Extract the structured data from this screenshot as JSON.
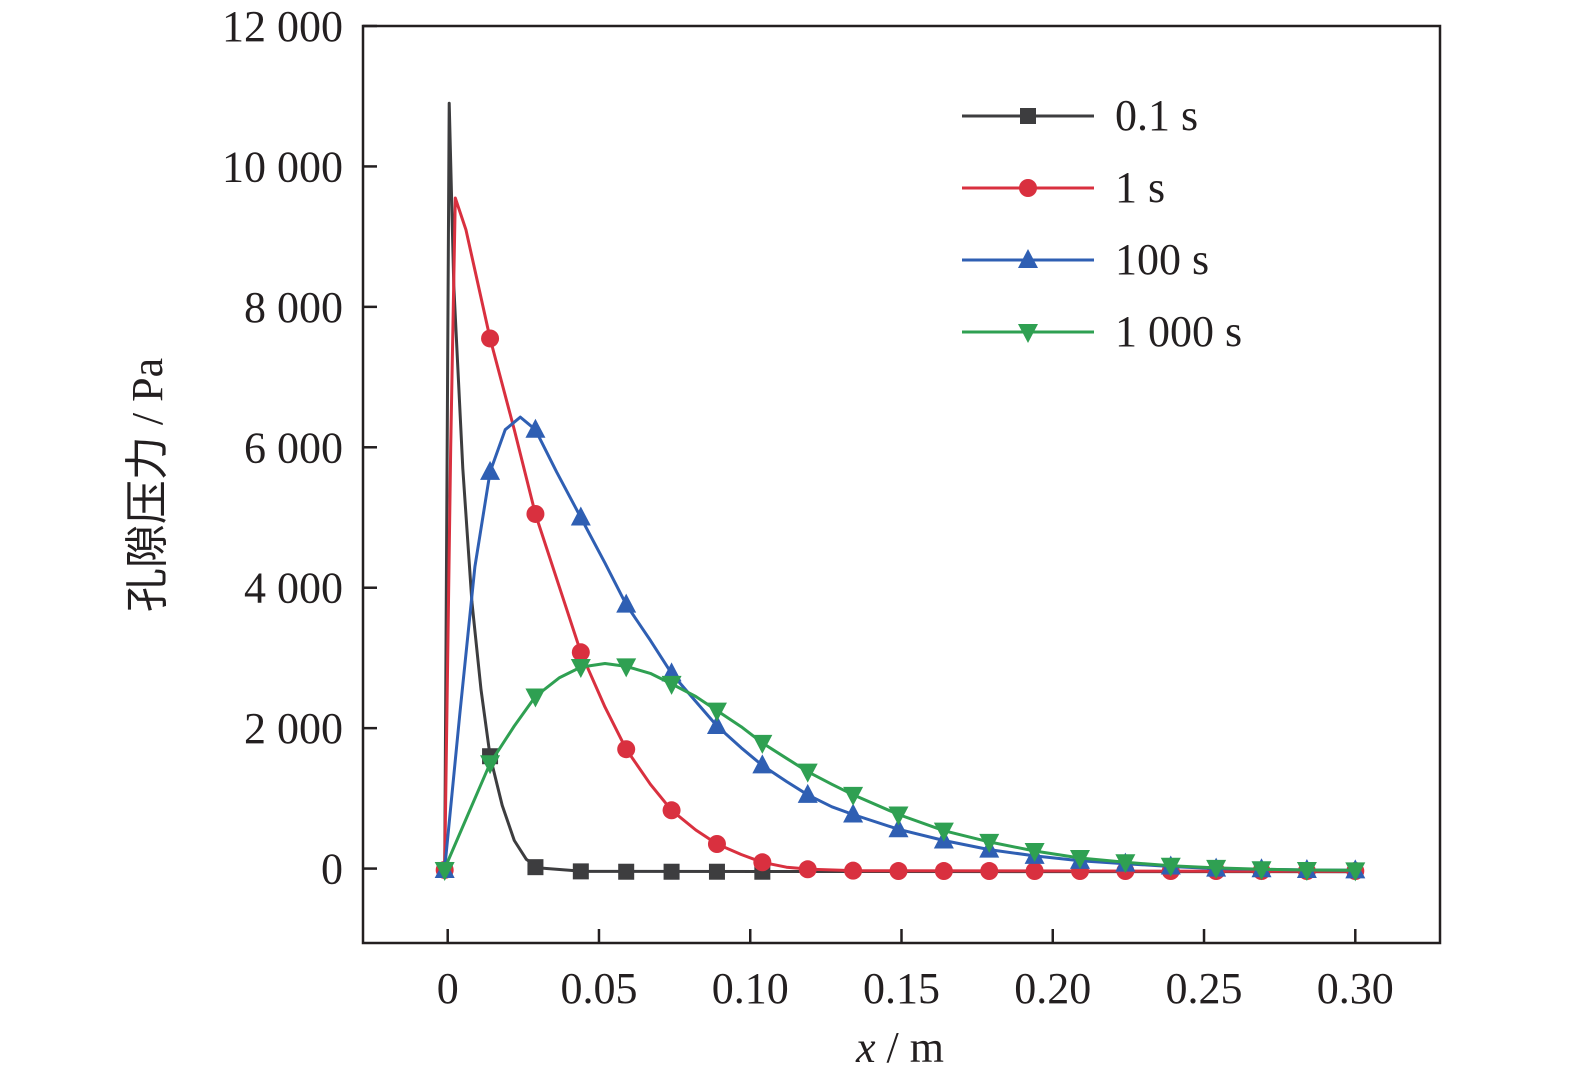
{
  "chart_data": {
    "type": "line",
    "xlabel_var": "x",
    "xlabel_unit": " / m",
    "ylabel": "孔隙压力 / Pa",
    "xlim": [
      -0.028,
      0.328
    ],
    "ylim": [
      -1060,
      12000
    ],
    "x_ticks": [
      0,
      0.05,
      0.1,
      0.15,
      0.2,
      0.25,
      0.3
    ],
    "x_tick_labels": [
      "0",
      "0.05",
      "0.10",
      "0.15",
      "0.20",
      "0.25",
      "0.30"
    ],
    "y_ticks": [
      0,
      2000,
      4000,
      6000,
      8000,
      10000,
      12000
    ],
    "y_tick_labels": [
      "0",
      "2 000",
      "4 000",
      "6 000",
      "8 000",
      "10 000",
      "12 000"
    ],
    "grid": false,
    "legend_position": "top-right",
    "series": [
      {
        "name": "0.1 s",
        "color": "#3d3d3f",
        "marker": "square",
        "curve": [
          [
            -0.001,
            0
          ],
          [
            0.0005,
            10900
          ],
          [
            0.002,
            8300
          ],
          [
            0.005,
            5700
          ],
          [
            0.008,
            3800
          ],
          [
            0.011,
            2550
          ],
          [
            0.014,
            1600
          ],
          [
            0.018,
            900
          ],
          [
            0.022,
            400
          ],
          [
            0.026,
            130
          ],
          [
            0.03,
            10
          ],
          [
            0.045,
            -40
          ],
          [
            0.3,
            -45
          ]
        ],
        "markers": [
          [
            -0.001,
            -20
          ],
          [
            0.014,
            1600
          ],
          [
            0.029,
            20
          ],
          [
            0.044,
            -40
          ],
          [
            0.059,
            -45
          ],
          [
            0.074,
            -45
          ],
          [
            0.089,
            -45
          ],
          [
            0.104,
            -45
          ]
        ]
      },
      {
        "name": "1 s",
        "color": "#d9303f",
        "marker": "circle",
        "curve": [
          [
            -0.001,
            0
          ],
          [
            0.001,
            6000
          ],
          [
            0.0025,
            9550
          ],
          [
            0.006,
            9100
          ],
          [
            0.014,
            7550
          ],
          [
            0.022,
            6250
          ],
          [
            0.029,
            5050
          ],
          [
            0.037,
            4000
          ],
          [
            0.044,
            3080
          ],
          [
            0.052,
            2300
          ],
          [
            0.059,
            1700
          ],
          [
            0.067,
            1200
          ],
          [
            0.074,
            830
          ],
          [
            0.082,
            550
          ],
          [
            0.089,
            350
          ],
          [
            0.097,
            200
          ],
          [
            0.104,
            90
          ],
          [
            0.112,
            20
          ],
          [
            0.12,
            -10
          ],
          [
            0.135,
            -30
          ],
          [
            0.3,
            -40
          ]
        ],
        "markers": [
          [
            -0.001,
            -20
          ],
          [
            0.014,
            7550
          ],
          [
            0.029,
            5050
          ],
          [
            0.044,
            3080
          ],
          [
            0.059,
            1700
          ],
          [
            0.074,
            830
          ],
          [
            0.089,
            350
          ],
          [
            0.104,
            90
          ],
          [
            0.119,
            -10
          ],
          [
            0.134,
            -30
          ],
          [
            0.149,
            -35
          ],
          [
            0.164,
            -35
          ],
          [
            0.179,
            -35
          ],
          [
            0.194,
            -35
          ],
          [
            0.209,
            -35
          ],
          [
            0.224,
            -35
          ],
          [
            0.239,
            -35
          ],
          [
            0.254,
            -35
          ],
          [
            0.269,
            -35
          ],
          [
            0.284,
            -35
          ],
          [
            0.3,
            -35
          ]
        ]
      },
      {
        "name": "100 s",
        "color": "#2f5fb3",
        "marker": "triangle-up",
        "curve": [
          [
            -0.001,
            0
          ],
          [
            0.004,
            2200
          ],
          [
            0.009,
            4300
          ],
          [
            0.014,
            5650
          ],
          [
            0.019,
            6250
          ],
          [
            0.024,
            6430
          ],
          [
            0.029,
            6250
          ],
          [
            0.036,
            5650
          ],
          [
            0.044,
            5000
          ],
          [
            0.052,
            4350
          ],
          [
            0.059,
            3760
          ],
          [
            0.067,
            3250
          ],
          [
            0.074,
            2780
          ],
          [
            0.082,
            2380
          ],
          [
            0.089,
            2030
          ],
          [
            0.097,
            1720
          ],
          [
            0.104,
            1470
          ],
          [
            0.112,
            1240
          ],
          [
            0.119,
            1050
          ],
          [
            0.127,
            880
          ],
          [
            0.134,
            770
          ],
          [
            0.149,
            560
          ],
          [
            0.164,
            400
          ],
          [
            0.179,
            270
          ],
          [
            0.194,
            180
          ],
          [
            0.209,
            110
          ],
          [
            0.224,
            70
          ],
          [
            0.239,
            30
          ],
          [
            0.254,
            0
          ],
          [
            0.269,
            -10
          ],
          [
            0.284,
            -20
          ],
          [
            0.3,
            -25
          ]
        ],
        "markers": [
          [
            -0.001,
            -20
          ],
          [
            0.014,
            5650
          ],
          [
            0.029,
            6250
          ],
          [
            0.044,
            5000
          ],
          [
            0.059,
            3760
          ],
          [
            0.074,
            2780
          ],
          [
            0.089,
            2030
          ],
          [
            0.104,
            1470
          ],
          [
            0.119,
            1050
          ],
          [
            0.134,
            770
          ],
          [
            0.149,
            560
          ],
          [
            0.164,
            400
          ],
          [
            0.179,
            270
          ],
          [
            0.194,
            180
          ],
          [
            0.209,
            110
          ],
          [
            0.224,
            70
          ],
          [
            0.239,
            30
          ],
          [
            0.254,
            0
          ],
          [
            0.269,
            -10
          ],
          [
            0.284,
            -20
          ],
          [
            0.3,
            -25
          ]
        ]
      },
      {
        "name": "1 000 s",
        "color": "#2fa052",
        "marker": "triangle-down",
        "curve": [
          [
            -0.001,
            0
          ],
          [
            0.007,
            800
          ],
          [
            0.014,
            1500
          ],
          [
            0.022,
            2030
          ],
          [
            0.029,
            2450
          ],
          [
            0.037,
            2720
          ],
          [
            0.044,
            2870
          ],
          [
            0.052,
            2920
          ],
          [
            0.059,
            2880
          ],
          [
            0.067,
            2780
          ],
          [
            0.074,
            2630
          ],
          [
            0.082,
            2450
          ],
          [
            0.089,
            2250
          ],
          [
            0.097,
            2020
          ],
          [
            0.104,
            1790
          ],
          [
            0.112,
            1570
          ],
          [
            0.119,
            1380
          ],
          [
            0.127,
            1200
          ],
          [
            0.134,
            1050
          ],
          [
            0.149,
            770
          ],
          [
            0.164,
            540
          ],
          [
            0.179,
            380
          ],
          [
            0.194,
            250
          ],
          [
            0.209,
            150
          ],
          [
            0.224,
            90
          ],
          [
            0.239,
            40
          ],
          [
            0.254,
            10
          ],
          [
            0.269,
            -10
          ],
          [
            0.284,
            -20
          ],
          [
            0.3,
            -25
          ]
        ],
        "markers": [
          [
            -0.001,
            -20
          ],
          [
            0.014,
            1500
          ],
          [
            0.029,
            2450
          ],
          [
            0.044,
            2870
          ],
          [
            0.059,
            2880
          ],
          [
            0.074,
            2630
          ],
          [
            0.089,
            2250
          ],
          [
            0.104,
            1790
          ],
          [
            0.119,
            1380
          ],
          [
            0.134,
            1050
          ],
          [
            0.149,
            770
          ],
          [
            0.164,
            540
          ],
          [
            0.179,
            380
          ],
          [
            0.194,
            250
          ],
          [
            0.209,
            150
          ],
          [
            0.224,
            90
          ],
          [
            0.239,
            40
          ],
          [
            0.254,
            10
          ],
          [
            0.269,
            -10
          ],
          [
            0.284,
            -20
          ],
          [
            0.3,
            -25
          ]
        ]
      }
    ]
  }
}
